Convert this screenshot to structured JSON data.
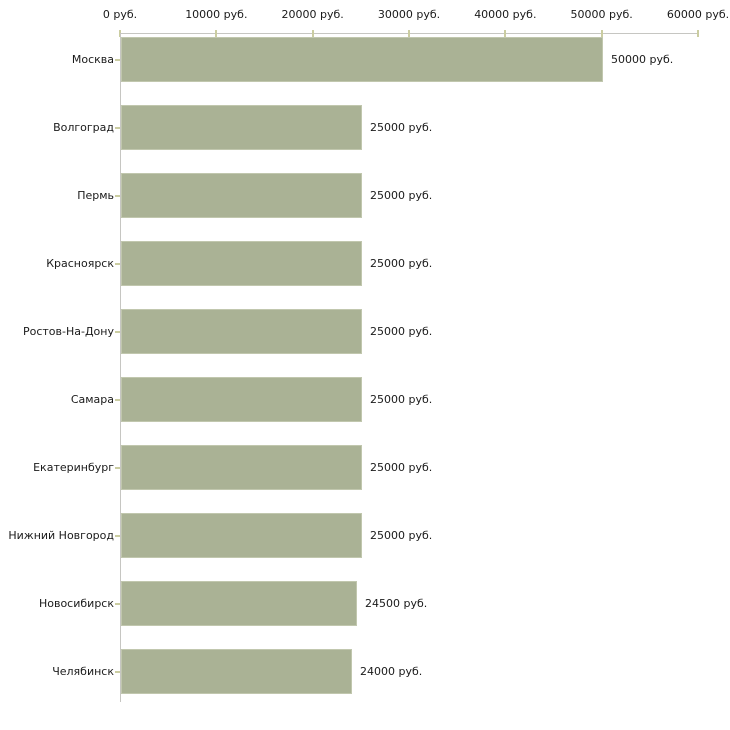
{
  "chart_data": {
    "type": "bar",
    "orientation": "horizontal",
    "title": "",
    "xlabel": "",
    "ylabel": "",
    "xlim": [
      0,
      60000
    ],
    "grid": false,
    "legend": false,
    "x_ticks": [
      {
        "value": 0,
        "label": "0 руб."
      },
      {
        "value": 10000,
        "label": "10000 руб."
      },
      {
        "value": 20000,
        "label": "20000 руб."
      },
      {
        "value": 30000,
        "label": "30000 руб."
      },
      {
        "value": 40000,
        "label": "40000 руб."
      },
      {
        "value": 50000,
        "label": "50000 руб."
      },
      {
        "value": 60000,
        "label": "60000 руб."
      }
    ],
    "bars": [
      {
        "category": "Москва",
        "value": 50000,
        "value_label": "50000 руб."
      },
      {
        "category": "Волгоград",
        "value": 25000,
        "value_label": "25000 руб."
      },
      {
        "category": "Пермь",
        "value": 25000,
        "value_label": "25000 руб."
      },
      {
        "category": "Красноярск",
        "value": 25000,
        "value_label": "25000 руб."
      },
      {
        "category": "Ростов-На-Дону",
        "value": 25000,
        "value_label": "25000 руб."
      },
      {
        "category": "Самара",
        "value": 25000,
        "value_label": "25000 руб."
      },
      {
        "category": "Екатеринбург",
        "value": 25000,
        "value_label": "25000 руб."
      },
      {
        "category": "Нижний Новгород",
        "value": 25000,
        "value_label": "25000 руб."
      },
      {
        "category": "Новосибирск",
        "value": 24500,
        "value_label": "24500 руб."
      },
      {
        "category": "Челябинск",
        "value": 24000,
        "value_label": "24000 руб."
      }
    ],
    "colors": {
      "bar_fill": "#aab295",
      "bar_border": "#c1c7ae",
      "axis_line": "#c6c6c2",
      "tick_mark": "#cbcda1",
      "text": "#1a1a1a",
      "background": "#ffffff"
    }
  }
}
